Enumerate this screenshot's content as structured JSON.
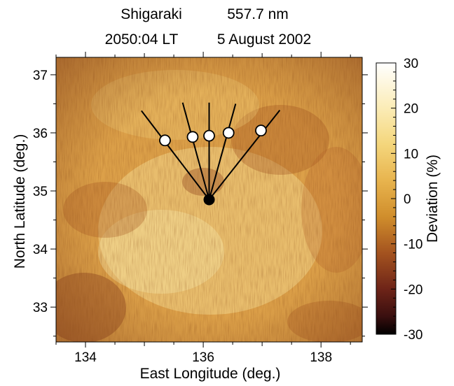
{
  "chart_data": {
    "type": "heatmap",
    "title_line1": {
      "site": "Shigaraki",
      "wavelength": "557.7 nm"
    },
    "title_line2": {
      "time": "2050:04 LT",
      "date": "5 August 2002"
    },
    "xlabel": "East Longitude (deg.)",
    "ylabel": "North Latitude (deg.)",
    "xlim": [
      133.5,
      138.7
    ],
    "ylim": [
      32.4,
      37.3
    ],
    "xticks": [
      134,
      136,
      138
    ],
    "xtick_labels": [
      "134",
      "136",
      "138"
    ],
    "yticks": [
      33,
      34,
      35,
      36,
      37
    ],
    "ytick_labels": [
      "33",
      "34",
      "35",
      "36",
      "37"
    ],
    "colorbar": {
      "label": "Deviation (%)",
      "range": [
        -30,
        30
      ],
      "ticks": [
        -30,
        -20,
        -10,
        0,
        10,
        20,
        30
      ],
      "tick_labels": [
        "-30",
        "-20",
        "-10",
        "0",
        "10",
        "20",
        "30"
      ],
      "stops": [
        {
          "v": -30,
          "color": "#000000"
        },
        {
          "v": -26,
          "color": "#3a0f0f"
        },
        {
          "v": -20,
          "color": "#6e2418"
        },
        {
          "v": -12,
          "color": "#a4531f"
        },
        {
          "v": -4,
          "color": "#d08e2c"
        },
        {
          "v": 4,
          "color": "#e8b44e"
        },
        {
          "v": 12,
          "color": "#f4d67c"
        },
        {
          "v": 20,
          "color": "#fbecb6"
        },
        {
          "v": 30,
          "color": "#ffffff"
        }
      ]
    },
    "station": {
      "lon": 136.1,
      "lat": 34.85
    },
    "beams": [
      {
        "lon": 135.35,
        "lat": 35.87,
        "end_lon": 134.95,
        "end_lat": 36.38
      },
      {
        "lon": 135.82,
        "lat": 35.93,
        "end_lon": 135.65,
        "end_lat": 36.52
      },
      {
        "lon": 136.1,
        "lat": 35.95,
        "end_lon": 136.1,
        "end_lat": 36.52
      },
      {
        "lon": 136.43,
        "lat": 36.0,
        "end_lon": 136.55,
        "end_lat": 36.5
      },
      {
        "lon": 136.98,
        "lat": 36.04,
        "end_lon": 137.3,
        "end_lat": 36.39
      }
    ]
  }
}
